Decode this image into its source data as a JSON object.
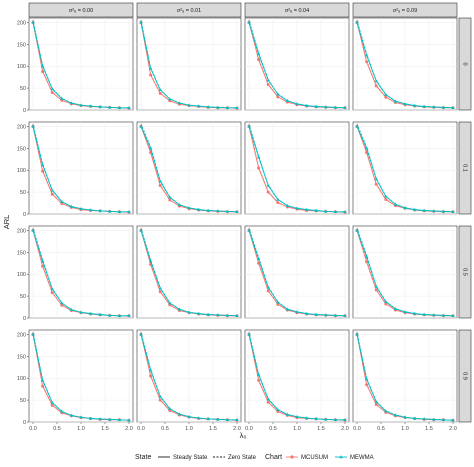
{
  "chart_data": {
    "type": "line",
    "xlabel": "λ₀",
    "ylabel": "ARL",
    "xlim": [
      0,
      2
    ],
    "ylim": [
      0,
      210
    ],
    "x_ticks": [
      "0.0",
      "0.5",
      "1.0",
      "1.5",
      "2.0"
    ],
    "y_ticks": [
      "0",
      "50",
      "100",
      "150",
      "200"
    ],
    "col_facets": [
      "σ²ᵤ = 0.00",
      "σ²ᵤ = 0.01",
      "σ²ᵤ = 0.04",
      "σ²ᵤ = 0.09"
    ],
    "row_facets": [
      "0",
      "0.1",
      "0.5",
      "0.9"
    ],
    "x": [
      0,
      0.2,
      0.4,
      0.6,
      0.8,
      1.0,
      1.2,
      1.4,
      1.6,
      1.8,
      2.0
    ],
    "legend": {
      "state_title": "State",
      "state_items": [
        "Steady State",
        "Zero State"
      ],
      "chart_title": "Chart",
      "chart_items": [
        "MCUSUM",
        "MEWMA"
      ]
    },
    "colors": {
      "MCUSUM": "#f8766d",
      "MEWMA": "#00bfc4"
    },
    "panels": [
      [
        {
          "MCUSUM": [
            200,
            88,
            40,
            22,
            14,
            10,
            8,
            7,
            6,
            5,
            4
          ],
          "MEWMA": [
            200,
            100,
            48,
            26,
            16,
            11,
            9,
            7,
            6,
            5,
            5
          ]
        },
        {
          "MCUSUM": [
            200,
            80,
            38,
            21,
            13,
            10,
            8,
            6,
            5,
            5,
            4
          ],
          "MEWMA": [
            200,
            95,
            46,
            25,
            16,
            11,
            9,
            7,
            6,
            5,
            5
          ]
        },
        {
          "MCUSUM": [
            200,
            115,
            58,
            30,
            18,
            12,
            9,
            7,
            6,
            5,
            5
          ],
          "MEWMA": [
            200,
            128,
            68,
            36,
            21,
            14,
            10,
            8,
            7,
            6,
            5
          ]
        },
        {
          "MCUSUM": [
            200,
            110,
            55,
            29,
            17,
            12,
            9,
            7,
            6,
            5,
            5
          ],
          "MEWMA": [
            200,
            125,
            66,
            35,
            20,
            14,
            10,
            8,
            7,
            6,
            5
          ]
        }
      ],
      [
        {
          "MCUSUM": [
            200,
            98,
            45,
            24,
            15,
            10,
            8,
            7,
            6,
            5,
            4
          ],
          "MEWMA": [
            200,
            112,
            54,
            28,
            17,
            12,
            9,
            7,
            6,
            5,
            5
          ]
        },
        {
          "MCUSUM": [
            200,
            140,
            65,
            32,
            18,
            12,
            9,
            7,
            6,
            5,
            5
          ],
          "MEWMA": [
            200,
            150,
            75,
            38,
            21,
            14,
            10,
            8,
            7,
            6,
            5
          ]
        },
        {
          "MCUSUM": [
            200,
            105,
            50,
            26,
            16,
            11,
            8,
            7,
            6,
            5,
            4
          ],
          "MEWMA": [
            200,
            130,
            65,
            33,
            19,
            13,
            10,
            8,
            6,
            5,
            5
          ]
        },
        {
          "MCUSUM": [
            200,
            140,
            68,
            33,
            19,
            13,
            9,
            7,
            6,
            5,
            5
          ],
          "MEWMA": [
            200,
            150,
            80,
            40,
            22,
            14,
            10,
            8,
            7,
            6,
            5
          ]
        }
      ],
      [
        {
          "MCUSUM": [
            200,
            118,
            58,
            29,
            17,
            12,
            9,
            7,
            6,
            5,
            5
          ],
          "MEWMA": [
            200,
            130,
            66,
            34,
            19,
            13,
            10,
            8,
            6,
            5,
            5
          ]
        },
        {
          "MCUSUM": [
            200,
            122,
            60,
            30,
            17,
            12,
            9,
            7,
            6,
            5,
            5
          ],
          "MEWMA": [
            200,
            130,
            68,
            34,
            20,
            13,
            10,
            8,
            7,
            6,
            5
          ]
        },
        {
          "MCUSUM": [
            200,
            125,
            62,
            31,
            18,
            12,
            9,
            7,
            6,
            5,
            5
          ],
          "MEWMA": [
            200,
            135,
            70,
            36,
            20,
            14,
            10,
            8,
            7,
            6,
            5
          ]
        },
        {
          "MCUSUM": [
            200,
            128,
            64,
            32,
            18,
            12,
            9,
            7,
            6,
            5,
            5
          ],
          "MEWMA": [
            200,
            140,
            72,
            37,
            21,
            14,
            10,
            8,
            7,
            6,
            5
          ]
        }
      ],
      [
        {
          "MCUSUM": [
            200,
            82,
            38,
            21,
            14,
            10,
            8,
            6,
            5,
            5,
            4
          ],
          "MEWMA": [
            200,
            95,
            44,
            24,
            15,
            11,
            8,
            7,
            6,
            5,
            4
          ]
        },
        {
          "MCUSUM": [
            200,
            105,
            50,
            26,
            16,
            11,
            8,
            7,
            6,
            5,
            4
          ],
          "MEWMA": [
            200,
            118,
            58,
            30,
            18,
            12,
            9,
            7,
            6,
            5,
            5
          ]
        },
        {
          "MCUSUM": [
            200,
            95,
            45,
            24,
            15,
            10,
            8,
            7,
            6,
            5,
            4
          ],
          "MEWMA": [
            200,
            108,
            52,
            28,
            17,
            12,
            9,
            7,
            6,
            5,
            5
          ]
        },
        {
          "MCUSUM": [
            200,
            85,
            40,
            22,
            14,
            10,
            8,
            6,
            5,
            5,
            4
          ],
          "MEWMA": [
            200,
            98,
            46,
            25,
            16,
            11,
            8,
            7,
            6,
            5,
            4
          ]
        }
      ]
    ]
  }
}
